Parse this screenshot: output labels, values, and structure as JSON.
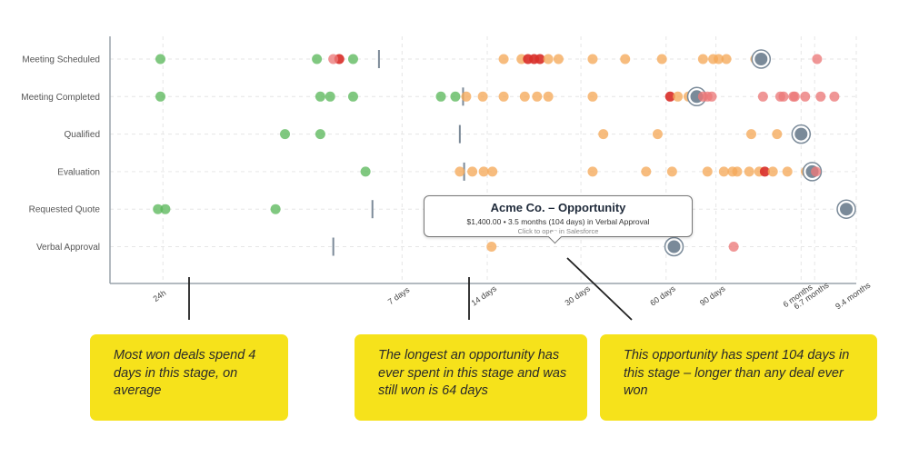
{
  "chart_data": {
    "type": "scatter",
    "stages": [
      "Meeting Scheduled",
      "Meeting Completed",
      "Qualified",
      "Evaluation",
      "Requested Quote",
      "Verbal Approval"
    ],
    "x_ticks": [
      "24h",
      "7 days",
      "14 days",
      "30 days",
      "60 days",
      "90 days",
      "6 months",
      "6.7 months",
      "9.4 months"
    ],
    "x_tick_days": [
      1,
      7,
      14,
      30,
      60,
      90,
      180,
      201,
      282
    ],
    "xlim_days": [
      0.65,
      282
    ],
    "x_scale": "log",
    "grid": true,
    "colors": {
      "green": "#5cb85c",
      "orange": "#f5a95a",
      "red": "#d9312b",
      "pink": "#ec7878",
      "highlight": "#7a8a99"
    },
    "average_markers_days": {
      "Meeting Scheduled": 5.8,
      "Meeting Completed": 11.5,
      "Qualified": 11.2,
      "Evaluation": 11.6,
      "Requested Quote": 5.5,
      "Verbal Approval": 4.0
    },
    "points": [
      {
        "stage": "Meeting Scheduled",
        "days": 0.98,
        "color": "green"
      },
      {
        "stage": "Meeting Scheduled",
        "days": 3.5,
        "color": "green"
      },
      {
        "stage": "Meeting Scheduled",
        "days": 4.2,
        "color": "red"
      },
      {
        "stage": "Meeting Scheduled",
        "days": 4.0,
        "color": "pink"
      },
      {
        "stage": "Meeting Scheduled",
        "days": 4.7,
        "color": "green"
      },
      {
        "stage": "Meeting Scheduled",
        "days": 16,
        "color": "orange"
      },
      {
        "stage": "Meeting Scheduled",
        "days": 18.5,
        "color": "orange"
      },
      {
        "stage": "Meeting Scheduled",
        "days": 19.5,
        "color": "red"
      },
      {
        "stage": "Meeting Scheduled",
        "days": 20.5,
        "color": "red"
      },
      {
        "stage": "Meeting Scheduled",
        "days": 21.5,
        "color": "red"
      },
      {
        "stage": "Meeting Scheduled",
        "days": 23,
        "color": "orange"
      },
      {
        "stage": "Meeting Scheduled",
        "days": 25,
        "color": "orange"
      },
      {
        "stage": "Meeting Scheduled",
        "days": 33,
        "color": "orange"
      },
      {
        "stage": "Meeting Scheduled",
        "days": 43,
        "color": "orange"
      },
      {
        "stage": "Meeting Scheduled",
        "days": 58,
        "color": "orange"
      },
      {
        "stage": "Meeting Scheduled",
        "days": 81,
        "color": "orange"
      },
      {
        "stage": "Meeting Scheduled",
        "days": 88,
        "color": "orange"
      },
      {
        "stage": "Meeting Scheduled",
        "days": 92,
        "color": "orange"
      },
      {
        "stage": "Meeting Scheduled",
        "days": 98,
        "color": "orange"
      },
      {
        "stage": "Meeting Scheduled",
        "days": 124,
        "color": "orange"
      },
      {
        "stage": "Meeting Scheduled",
        "days": 130,
        "color": "highlight"
      },
      {
        "stage": "Meeting Scheduled",
        "days": 205,
        "color": "pink"
      },
      {
        "stage": "Meeting Completed",
        "days": 0.98,
        "color": "green"
      },
      {
        "stage": "Meeting Completed",
        "days": 3.6,
        "color": "green"
      },
      {
        "stage": "Meeting Completed",
        "days": 3.9,
        "color": "green"
      },
      {
        "stage": "Meeting Completed",
        "days": 4.7,
        "color": "green"
      },
      {
        "stage": "Meeting Completed",
        "days": 9.6,
        "color": "green"
      },
      {
        "stage": "Meeting Completed",
        "days": 10.8,
        "color": "green"
      },
      {
        "stage": "Meeting Completed",
        "days": 11.8,
        "color": "orange"
      },
      {
        "stage": "Meeting Completed",
        "days": 13.5,
        "color": "orange"
      },
      {
        "stage": "Meeting Completed",
        "days": 16,
        "color": "orange"
      },
      {
        "stage": "Meeting Completed",
        "days": 19,
        "color": "orange"
      },
      {
        "stage": "Meeting Completed",
        "days": 21,
        "color": "orange"
      },
      {
        "stage": "Meeting Completed",
        "days": 23,
        "color": "orange"
      },
      {
        "stage": "Meeting Completed",
        "days": 33,
        "color": "orange"
      },
      {
        "stage": "Meeting Completed",
        "days": 62,
        "color": "red"
      },
      {
        "stage": "Meeting Completed",
        "days": 66,
        "color": "orange"
      },
      {
        "stage": "Meeting Completed",
        "days": 72,
        "color": "orange"
      },
      {
        "stage": "Meeting Completed",
        "days": 77,
        "color": "highlight"
      },
      {
        "stage": "Meeting Completed",
        "days": 81,
        "color": "pink"
      },
      {
        "stage": "Meeting Completed",
        "days": 84,
        "color": "pink"
      },
      {
        "stage": "Meeting Completed",
        "days": 87,
        "color": "pink"
      },
      {
        "stage": "Meeting Completed",
        "days": 132,
        "color": "pink"
      },
      {
        "stage": "Meeting Completed",
        "days": 152,
        "color": "pink"
      },
      {
        "stage": "Meeting Completed",
        "days": 156,
        "color": "pink"
      },
      {
        "stage": "Meeting Completed",
        "days": 169,
        "color": "pink"
      },
      {
        "stage": "Meeting Completed",
        "days": 171,
        "color": "pink"
      },
      {
        "stage": "Meeting Completed",
        "days": 186,
        "color": "pink"
      },
      {
        "stage": "Meeting Completed",
        "days": 211,
        "color": "pink"
      },
      {
        "stage": "Meeting Completed",
        "days": 236,
        "color": "pink"
      },
      {
        "stage": "Qualified",
        "days": 2.7,
        "color": "green"
      },
      {
        "stage": "Qualified",
        "days": 3.6,
        "color": "green"
      },
      {
        "stage": "Qualified",
        "days": 36,
        "color": "orange"
      },
      {
        "stage": "Qualified",
        "days": 56,
        "color": "orange"
      },
      {
        "stage": "Qualified",
        "days": 120,
        "color": "orange"
      },
      {
        "stage": "Qualified",
        "days": 148,
        "color": "orange"
      },
      {
        "stage": "Qualified",
        "days": 180,
        "color": "highlight"
      },
      {
        "stage": "Evaluation",
        "days": 5.2,
        "color": "green"
      },
      {
        "stage": "Evaluation",
        "days": 11.2,
        "color": "orange"
      },
      {
        "stage": "Evaluation",
        "days": 12.4,
        "color": "orange"
      },
      {
        "stage": "Evaluation",
        "days": 13.6,
        "color": "orange"
      },
      {
        "stage": "Evaluation",
        "days": 14.6,
        "color": "orange"
      },
      {
        "stage": "Evaluation",
        "days": 33,
        "color": "orange"
      },
      {
        "stage": "Evaluation",
        "days": 51,
        "color": "orange"
      },
      {
        "stage": "Evaluation",
        "days": 63,
        "color": "orange"
      },
      {
        "stage": "Evaluation",
        "days": 84,
        "color": "orange"
      },
      {
        "stage": "Evaluation",
        "days": 96,
        "color": "orange"
      },
      {
        "stage": "Evaluation",
        "days": 103,
        "color": "orange"
      },
      {
        "stage": "Evaluation",
        "days": 107,
        "color": "orange"
      },
      {
        "stage": "Evaluation",
        "days": 118,
        "color": "orange"
      },
      {
        "stage": "Evaluation",
        "days": 128,
        "color": "orange"
      },
      {
        "stage": "Evaluation",
        "days": 134,
        "color": "red"
      },
      {
        "stage": "Evaluation",
        "days": 143,
        "color": "orange"
      },
      {
        "stage": "Evaluation",
        "days": 161,
        "color": "orange"
      },
      {
        "stage": "Evaluation",
        "days": 187,
        "color": "orange"
      },
      {
        "stage": "Evaluation",
        "days": 193,
        "color": "red"
      },
      {
        "stage": "Evaluation",
        "days": 197,
        "color": "highlight"
      },
      {
        "stage": "Evaluation",
        "days": 203,
        "color": "pink"
      },
      {
        "stage": "Requested Quote",
        "days": 0.96,
        "color": "green"
      },
      {
        "stage": "Requested Quote",
        "days": 1.02,
        "color": "green"
      },
      {
        "stage": "Requested Quote",
        "days": 2.5,
        "color": "green"
      },
      {
        "stage": "Requested Quote",
        "days": 40,
        "color": "orange"
      },
      {
        "stage": "Requested Quote",
        "days": 260,
        "color": "highlight"
      },
      {
        "stage": "Verbal Approval",
        "days": 14.5,
        "color": "orange"
      },
      {
        "stage": "Verbal Approval",
        "days": 64,
        "color": "highlight"
      },
      {
        "stage": "Verbal Approval",
        "days": 104,
        "color": "pink"
      }
    ]
  },
  "tooltip": {
    "title": "Acme Co. – Opportunity",
    "detail": "$1,400.00 • 3.5 months (104 days) in Verbal Approval",
    "link": "Click to open in Salesforce"
  },
  "callouts": [
    "Most won deals spend 4 days in this stage, on average",
    "The longest an opportunity has ever spent in this stage and was still won is 64 days",
    "This opportunity has spent 104 days in this stage – longer than any deal ever won"
  ]
}
